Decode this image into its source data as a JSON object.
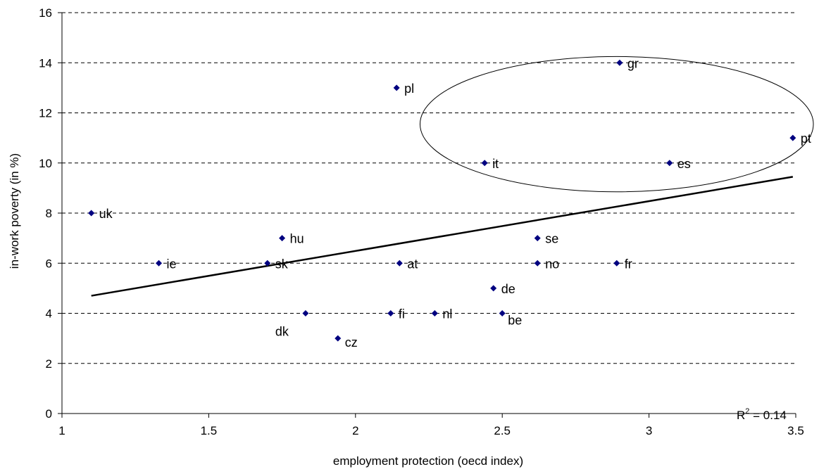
{
  "chart_data": {
    "type": "scatter",
    "xlabel": "employment protection (oecd index)",
    "ylabel": "in-work poverty (in %)",
    "xlim": [
      1,
      3.5
    ],
    "ylim": [
      0,
      16
    ],
    "xticks": [
      "1",
      "1.5",
      "2",
      "2.5",
      "3",
      "3.5"
    ],
    "yticks": [
      "0",
      "2",
      "4",
      "6",
      "8",
      "10",
      "12",
      "14",
      "16"
    ],
    "grid": "horizontal dashed",
    "marker_color": "#000080",
    "points": [
      {
        "label": "uk",
        "x": 1.1,
        "y": 8
      },
      {
        "label": "ie",
        "x": 1.33,
        "y": 6
      },
      {
        "label": "sk",
        "x": 1.7,
        "y": 6
      },
      {
        "label": "hu",
        "x": 1.75,
        "y": 7
      },
      {
        "label": "dk",
        "x": 1.83,
        "y": 4
      },
      {
        "label": "cz",
        "x": 1.94,
        "y": 3
      },
      {
        "label": "fi",
        "x": 2.12,
        "y": 4
      },
      {
        "label": "pl",
        "x": 2.14,
        "y": 13
      },
      {
        "label": "at",
        "x": 2.15,
        "y": 6
      },
      {
        "label": "nl",
        "x": 2.27,
        "y": 4
      },
      {
        "label": "it",
        "x": 2.44,
        "y": 10
      },
      {
        "label": "de",
        "x": 2.47,
        "y": 5
      },
      {
        "label": "be",
        "x": 2.5,
        "y": 4
      },
      {
        "label": "se",
        "x": 2.62,
        "y": 7
      },
      {
        "label": "no",
        "x": 2.62,
        "y": 6
      },
      {
        "label": "fr",
        "x": 2.89,
        "y": 6
      },
      {
        "label": "gr",
        "x": 2.9,
        "y": 14
      },
      {
        "label": "es",
        "x": 3.07,
        "y": 10
      },
      {
        "label": "pt",
        "x": 3.49,
        "y": 11
      }
    ],
    "trendline": {
      "x": [
        1.1,
        3.49
      ],
      "y": [
        4.7,
        9.45
      ]
    },
    "highlight_ellipse": {
      "cx": 2.89,
      "cy": 11.55,
      "rx": 0.67,
      "ry": 2.7
    },
    "annotation": {
      "r2_prefix": "R",
      "r2_sup": "2",
      "r2_value": " = 0.14"
    }
  }
}
